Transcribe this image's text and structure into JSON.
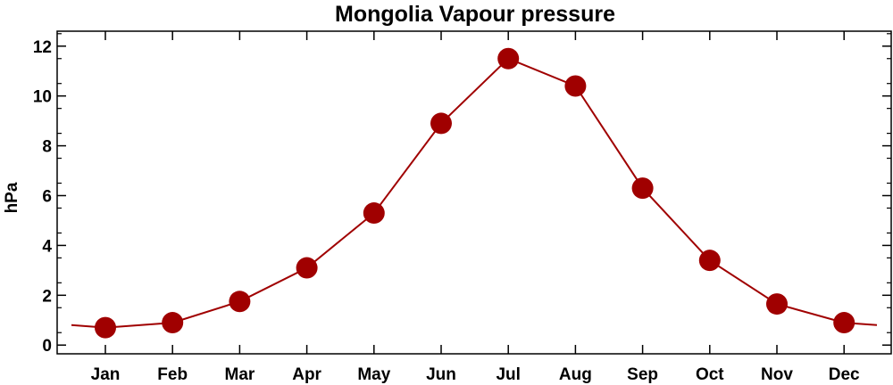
{
  "chart_data": {
    "type": "line",
    "title": "Mongolia Vapour pressure",
    "xlabel": "",
    "ylabel": "hPa",
    "categories": [
      "Jan",
      "Feb",
      "Mar",
      "Apr",
      "May",
      "Jun",
      "Jul",
      "Aug",
      "Sep",
      "Oct",
      "Nov",
      "Dec"
    ],
    "series": [
      {
        "values": [
          0.7,
          0.9,
          1.75,
          3.1,
          5.3,
          8.9,
          11.5,
          10.4,
          6.3,
          3.4,
          1.65,
          0.9
        ]
      }
    ],
    "yticks": [
      0,
      2,
      4,
      6,
      8,
      10,
      12
    ],
    "ylim": [
      -0.35,
      12.6
    ],
    "grid": false,
    "legend": "none",
    "colors": {
      "series": "#a00000",
      "axis": "#000000"
    }
  }
}
